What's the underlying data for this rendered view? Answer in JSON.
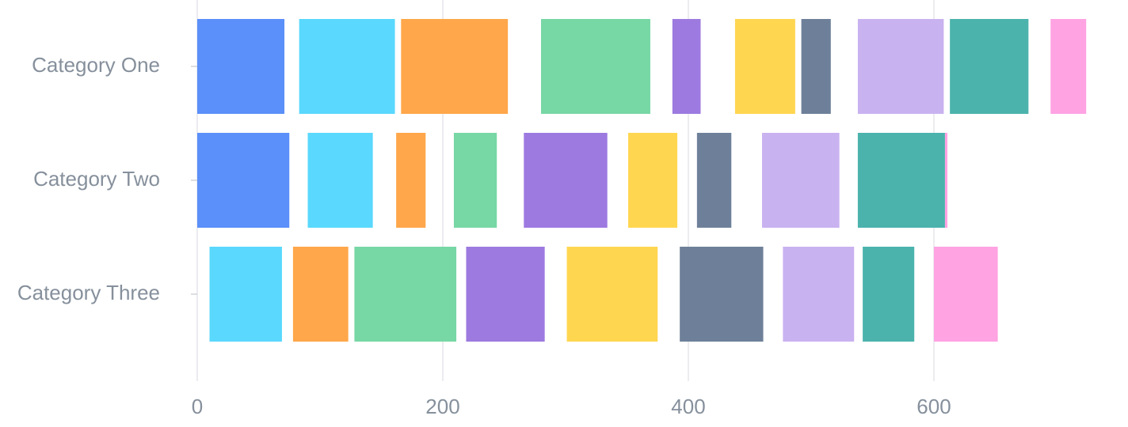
{
  "chart_data": {
    "type": "bar",
    "orientation": "horizontal",
    "stacked": "range-segments",
    "categories": [
      "Category One",
      "Category Two",
      "Category Three"
    ],
    "xlim": [
      0,
      728
    ],
    "xticks": [
      "0",
      "200",
      "400",
      "600"
    ],
    "xtick_values": [
      0,
      200,
      400,
      600
    ],
    "grid": true,
    "legend": "none",
    "segments": [
      [
        {
          "start": 0,
          "end": 71,
          "color": "#5b8ff9"
        },
        {
          "start": 83,
          "end": 161,
          "color": "#5ad8fd"
        },
        {
          "start": 166,
          "end": 253,
          "color": "#ffa74a"
        },
        {
          "start": 280,
          "end": 369,
          "color": "#77d7a5"
        },
        {
          "start": 387,
          "end": 410,
          "color": "#9d7ae0"
        },
        {
          "start": 438,
          "end": 487,
          "color": "#ffd650"
        },
        {
          "start": 492,
          "end": 516,
          "color": "#6e8099"
        },
        {
          "start": 538,
          "end": 608,
          "color": "#c9b2f0"
        },
        {
          "start": 613,
          "end": 677,
          "color": "#4bb3ac"
        },
        {
          "start": 695,
          "end": 724,
          "color": "#ffa3e2"
        }
      ],
      [
        {
          "start": 0,
          "end": 75,
          "color": "#5b8ff9"
        },
        {
          "start": 90,
          "end": 143,
          "color": "#5ad8fd"
        },
        {
          "start": 162,
          "end": 186,
          "color": "#ffa74a"
        },
        {
          "start": 209,
          "end": 244,
          "color": "#77d7a5"
        },
        {
          "start": 266,
          "end": 334,
          "color": "#9d7ae0"
        },
        {
          "start": 351,
          "end": 391,
          "color": "#ffd650"
        },
        {
          "start": 407,
          "end": 435,
          "color": "#6e8099"
        },
        {
          "start": 460,
          "end": 523,
          "color": "#c9b2f0"
        },
        {
          "start": 538,
          "end": 609,
          "color": "#4bb3ac"
        },
        {
          "start": 609,
          "end": 611,
          "color": "#ffa3e2"
        }
      ],
      [
        {
          "start": 10,
          "end": 69,
          "color": "#5ad8fd"
        },
        {
          "start": 78,
          "end": 123,
          "color": "#ffa74a"
        },
        {
          "start": 128,
          "end": 211,
          "color": "#77d7a5"
        },
        {
          "start": 219,
          "end": 283,
          "color": "#9d7ae0"
        },
        {
          "start": 301,
          "end": 375,
          "color": "#ffd650"
        },
        {
          "start": 393,
          "end": 461,
          "color": "#6e8099"
        },
        {
          "start": 477,
          "end": 535,
          "color": "#c9b2f0"
        },
        {
          "start": 542,
          "end": 584,
          "color": "#4bb3ac"
        },
        {
          "start": 600,
          "end": 652,
          "color": "#ffa3e2"
        }
      ]
    ]
  }
}
